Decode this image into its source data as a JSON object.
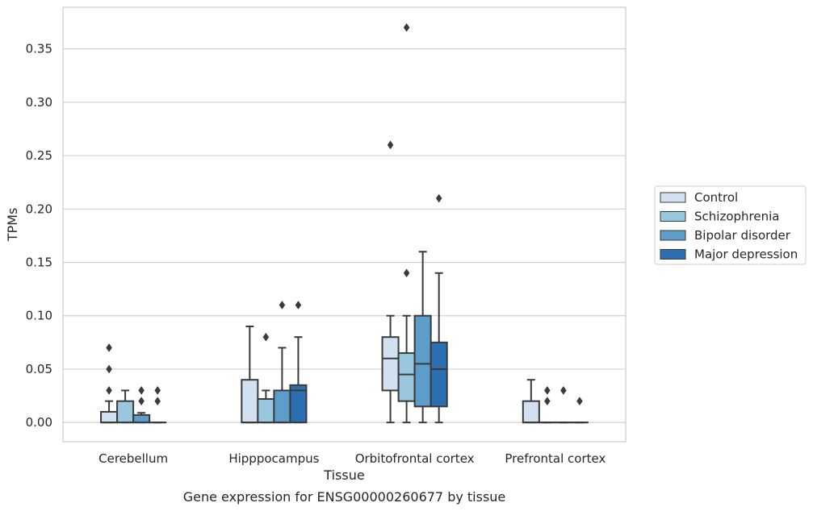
{
  "chart_data": {
    "type": "box",
    "title": "",
    "caption": "Gene expression for ENSG00000260677 by tissue",
    "xlabel": "Tissue",
    "ylabel": "TPMs",
    "ylim": [
      -0.018,
      0.389
    ],
    "yticks": [
      0.0,
      0.05,
      0.1,
      0.15,
      0.2,
      0.25,
      0.3,
      0.35
    ],
    "ytick_labels": [
      "0.00",
      "0.05",
      "0.10",
      "0.15",
      "0.20",
      "0.25",
      "0.30",
      "0.35"
    ],
    "grid": "horizontal",
    "legend_position": "right",
    "categories": [
      "Cerebellum",
      "Hipppocampus",
      "Orbitofrontal cortex",
      "Prefrontal cortex"
    ],
    "series": [
      {
        "name": "Control",
        "color": "#d1e1f1",
        "boxes": [
          {
            "q1": 0.0,
            "median": 0.0,
            "q3": 0.01,
            "whisker_low": 0.0,
            "whisker_high": 0.02,
            "outliers": [
              0.03,
              0.05,
              0.07
            ]
          },
          {
            "q1": 0.0,
            "median": 0.0,
            "q3": 0.04,
            "whisker_low": 0.0,
            "whisker_high": 0.09,
            "outliers": []
          },
          {
            "q1": 0.03,
            "median": 0.06,
            "q3": 0.08,
            "whisker_low": 0.0,
            "whisker_high": 0.1,
            "outliers": [
              0.26
            ]
          },
          {
            "q1": 0.0,
            "median": 0.0,
            "q3": 0.02,
            "whisker_low": 0.0,
            "whisker_high": 0.04,
            "outliers": []
          }
        ]
      },
      {
        "name": "Schizophrenia",
        "color": "#9ac7e0",
        "boxes": [
          {
            "q1": 0.0,
            "median": 0.0,
            "q3": 0.02,
            "whisker_low": 0.0,
            "whisker_high": 0.03,
            "outliers": []
          },
          {
            "q1": 0.0,
            "median": 0.0,
            "q3": 0.022,
            "whisker_low": 0.0,
            "whisker_high": 0.03,
            "outliers": [
              0.08
            ]
          },
          {
            "q1": 0.02,
            "median": 0.045,
            "q3": 0.065,
            "whisker_low": 0.0,
            "whisker_high": 0.1,
            "outliers": [
              0.14,
              0.37
            ]
          },
          {
            "q1": 0.0,
            "median": 0.0,
            "q3": 0.0,
            "whisker_low": 0.0,
            "whisker_high": 0.0,
            "outliers": [
              0.02,
              0.03
            ]
          }
        ]
      },
      {
        "name": "Bipolar disorder",
        "color": "#5d9dc9",
        "boxes": [
          {
            "q1": 0.0,
            "median": 0.0,
            "q3": 0.007,
            "whisker_low": 0.0,
            "whisker_high": 0.009,
            "outliers": [
              0.02,
              0.03
            ]
          },
          {
            "q1": 0.0,
            "median": 0.0,
            "q3": 0.03,
            "whisker_low": 0.0,
            "whisker_high": 0.07,
            "outliers": [
              0.11
            ]
          },
          {
            "q1": 0.015,
            "median": 0.055,
            "q3": 0.1,
            "whisker_low": 0.0,
            "whisker_high": 0.16,
            "outliers": []
          },
          {
            "q1": 0.0,
            "median": 0.0,
            "q3": 0.0,
            "whisker_low": 0.0,
            "whisker_high": 0.0,
            "outliers": [
              0.03
            ]
          }
        ]
      },
      {
        "name": "Major depression",
        "color": "#2b6fb0",
        "boxes": [
          {
            "q1": 0.0,
            "median": 0.0,
            "q3": 0.0,
            "whisker_low": 0.0,
            "whisker_high": 0.0,
            "outliers": [
              0.02,
              0.03
            ]
          },
          {
            "q1": 0.0,
            "median": 0.03,
            "q3": 0.035,
            "whisker_low": 0.0,
            "whisker_high": 0.08,
            "outliers": [
              0.11
            ]
          },
          {
            "q1": 0.015,
            "median": 0.05,
            "q3": 0.075,
            "whisker_low": 0.0,
            "whisker_high": 0.14,
            "outliers": [
              0.21
            ]
          },
          {
            "q1": 0.0,
            "median": 0.0,
            "q3": 0.0,
            "whisker_low": 0.0,
            "whisker_high": 0.0,
            "outliers": [
              0.02
            ]
          }
        ]
      }
    ],
    "colors": {
      "line": "#3a3a3a",
      "grid": "#d0d0d0",
      "frame": "#cccccc"
    }
  }
}
